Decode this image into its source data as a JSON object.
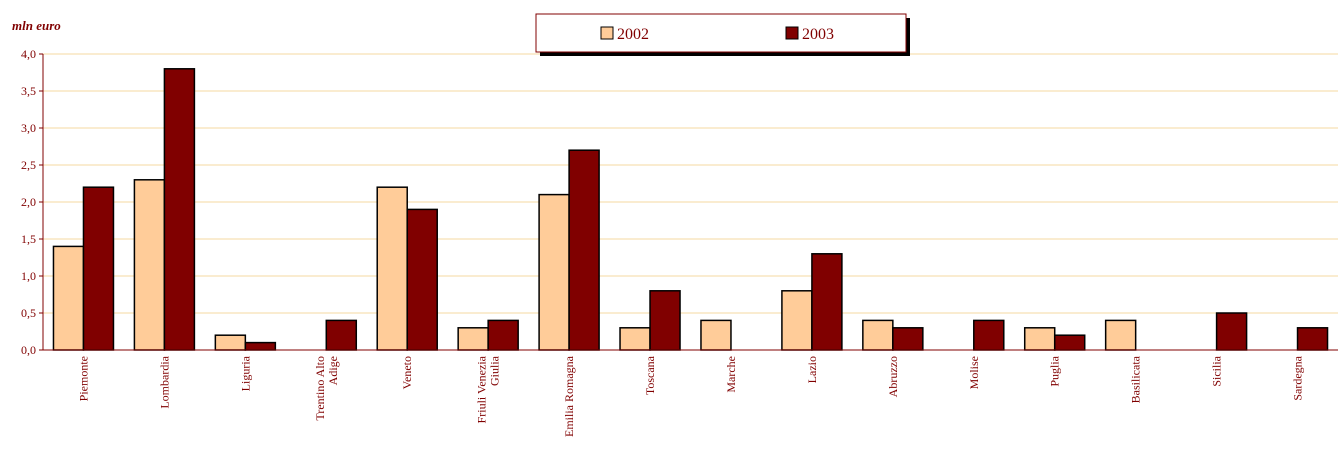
{
  "colors": {
    "series_2002": "#FFCC99",
    "series_2003": "#800000",
    "axis_text": "#800000",
    "gridline": "#F5D9A0",
    "bar_stroke": "#000000"
  },
  "chart_data": {
    "type": "bar",
    "ylabel": "mln euro",
    "ylim": [
      0,
      4.0
    ],
    "yticks": [
      "0,0",
      "0,5",
      "1,0",
      "1,5",
      "2,0",
      "2,5",
      "3,0",
      "3,5",
      "4,0"
    ],
    "grid": true,
    "legend_position": "top-center",
    "categories": [
      "Piemonte",
      "Lombardia",
      "Liguria",
      "Trentino Alto Adige",
      "Veneto",
      "Friuli Venezia Giulia",
      "Emilia Romagna",
      "Toscana",
      "Marche",
      "Lazio",
      "Abruzzo",
      "Molise",
      "Puglia",
      "Basilicata",
      "Sicilia",
      "Sardegna"
    ],
    "category_lines": [
      [
        "Piemonte"
      ],
      [
        "Lombardia"
      ],
      [
        "Liguria"
      ],
      [
        "Trentino Alto",
        "Adige"
      ],
      [
        "Veneto"
      ],
      [
        "Friuli Venezia",
        "Giulia"
      ],
      [
        "Emilia Romagna"
      ],
      [
        "Toscana"
      ],
      [
        "Marche"
      ],
      [
        "Lazio"
      ],
      [
        "Abruzzo"
      ],
      [
        "Molise"
      ],
      [
        "Puglia"
      ],
      [
        "Basilicata"
      ],
      [
        "Sicilia"
      ],
      [
        "Sardegna"
      ]
    ],
    "series": [
      {
        "name": "2002",
        "values": [
          1.4,
          2.3,
          0.2,
          0,
          2.2,
          0.3,
          2.1,
          0.3,
          0.4,
          0.8,
          0.4,
          0,
          0.3,
          0.4,
          0,
          0
        ]
      },
      {
        "name": "2003",
        "values": [
          2.2,
          3.8,
          0.1,
          0.4,
          1.9,
          0.4,
          2.7,
          0.8,
          0,
          1.3,
          0.3,
          0.4,
          0.2,
          0,
          0.5,
          0.3
        ]
      }
    ]
  }
}
